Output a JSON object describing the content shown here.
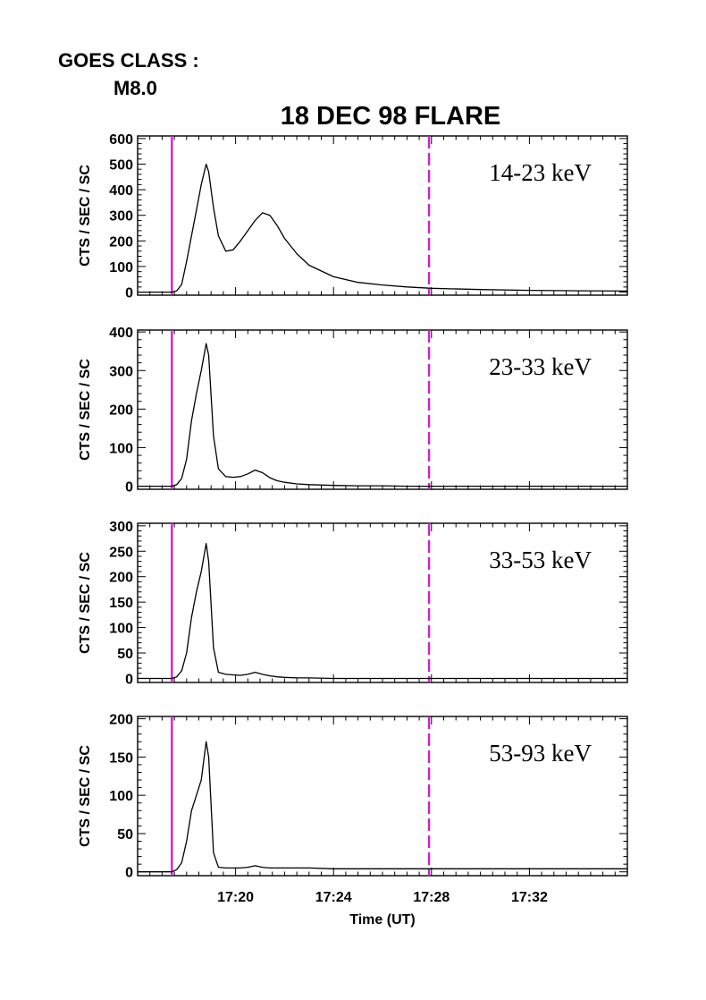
{
  "header": {
    "goes_label": "GOES CLASS :",
    "goes_class": "M8.0",
    "title": "18 DEC 98 FLARE"
  },
  "chart_data": {
    "type": "line",
    "title": "18 DEC 98 FLARE",
    "xlabel": "Time (UT)",
    "x_range_minutes_after_17_00": [
      16.0,
      36.0
    ],
    "x_ticks": [
      {
        "label": "17:20",
        "value": 20
      },
      {
        "label": "17:24",
        "value": 24
      },
      {
        "label": "17:28",
        "value": 28
      },
      {
        "label": "17:32",
        "value": 32
      }
    ],
    "markers": {
      "solid_line_time": "17:17.4",
      "solid_line_value": 17.4,
      "dashed_line_time": "17:27.9",
      "dashed_line_value": 27.9,
      "color": "#cc22cc"
    },
    "line_color": "#000000",
    "panels": [
      {
        "band": "14-23 keV",
        "ylabel": "CTS / SEC / SC",
        "ylim": [
          -12,
          610
        ],
        "yticks": [
          0,
          100,
          200,
          300,
          400,
          500,
          600
        ],
        "x": [
          16.0,
          17.4,
          17.6,
          17.8,
          18.0,
          18.2,
          18.4,
          18.6,
          18.8,
          18.9,
          19.1,
          19.3,
          19.6,
          19.9,
          20.2,
          20.5,
          20.8,
          21.1,
          21.4,
          21.7,
          22.0,
          22.5,
          23.0,
          24.0,
          25.0,
          26.0,
          27.0,
          28.0,
          30.0,
          32.0,
          34.0,
          36.0
        ],
        "values": [
          0,
          0,
          5,
          30,
          120,
          220,
          320,
          420,
          500,
          470,
          330,
          220,
          160,
          165,
          200,
          240,
          280,
          310,
          300,
          260,
          210,
          150,
          105,
          60,
          38,
          28,
          20,
          15,
          10,
          7,
          5,
          4
        ]
      },
      {
        "band": "23-33 keV",
        "ylabel": "CTS / SEC / SC",
        "ylim": [
          -8,
          405
        ],
        "yticks": [
          0,
          100,
          200,
          300,
          400
        ],
        "x": [
          16.0,
          17.4,
          17.6,
          17.8,
          18.0,
          18.2,
          18.4,
          18.6,
          18.8,
          18.9,
          19.1,
          19.3,
          19.6,
          19.9,
          20.2,
          20.5,
          20.8,
          21.1,
          21.4,
          21.7,
          22.0,
          22.5,
          23.0,
          24.0,
          25.0,
          26.0,
          27.0,
          28.0,
          30.0,
          32.0,
          34.0,
          36.0
        ],
        "values": [
          0,
          0,
          4,
          20,
          70,
          170,
          240,
          300,
          370,
          340,
          130,
          45,
          25,
          23,
          25,
          32,
          42,
          35,
          22,
          14,
          10,
          6,
          4,
          2,
          1,
          1,
          0,
          0,
          0,
          0,
          0,
          0
        ]
      },
      {
        "band": "33-53 keV",
        "ylabel": "CTS / SEC / SC",
        "ylim": [
          -8,
          305
        ],
        "yticks": [
          0,
          50,
          100,
          150,
          200,
          250,
          300
        ],
        "x": [
          16.0,
          17.4,
          17.6,
          17.8,
          18.0,
          18.2,
          18.4,
          18.6,
          18.8,
          18.9,
          19.1,
          19.3,
          19.6,
          19.9,
          20.2,
          20.5,
          20.8,
          21.1,
          21.4,
          21.7,
          22.0,
          22.5,
          23.0,
          24.0,
          25.0,
          26.0,
          27.0,
          28.0,
          30.0,
          32.0,
          34.0,
          36.0
        ],
        "values": [
          0,
          0,
          3,
          15,
          50,
          120,
          170,
          210,
          265,
          230,
          60,
          12,
          8,
          7,
          6,
          8,
          12,
          8,
          5,
          3,
          2,
          1,
          1,
          0,
          0,
          0,
          0,
          0,
          0,
          0,
          0,
          0
        ]
      },
      {
        "band": "53-93 keV",
        "ylabel": "CTS / SEC / SC",
        "ylim": [
          -5,
          203
        ],
        "yticks": [
          0,
          50,
          100,
          150,
          200
        ],
        "x": [
          16.0,
          17.4,
          17.6,
          17.8,
          18.0,
          18.2,
          18.4,
          18.6,
          18.8,
          18.9,
          19.1,
          19.3,
          19.6,
          19.9,
          20.2,
          20.5,
          20.8,
          21.1,
          21.4,
          21.7,
          22.0,
          22.5,
          23.0,
          24.0,
          25.0,
          26.0,
          27.0,
          28.0,
          30.0,
          32.0,
          34.0,
          36.0
        ],
        "values": [
          0,
          0,
          3,
          12,
          40,
          80,
          100,
          120,
          170,
          150,
          25,
          6,
          5,
          5,
          5,
          6,
          8,
          6,
          5,
          5,
          5,
          5,
          5,
          4,
          4,
          4,
          4,
          4,
          4,
          4,
          4,
          4
        ]
      }
    ]
  }
}
